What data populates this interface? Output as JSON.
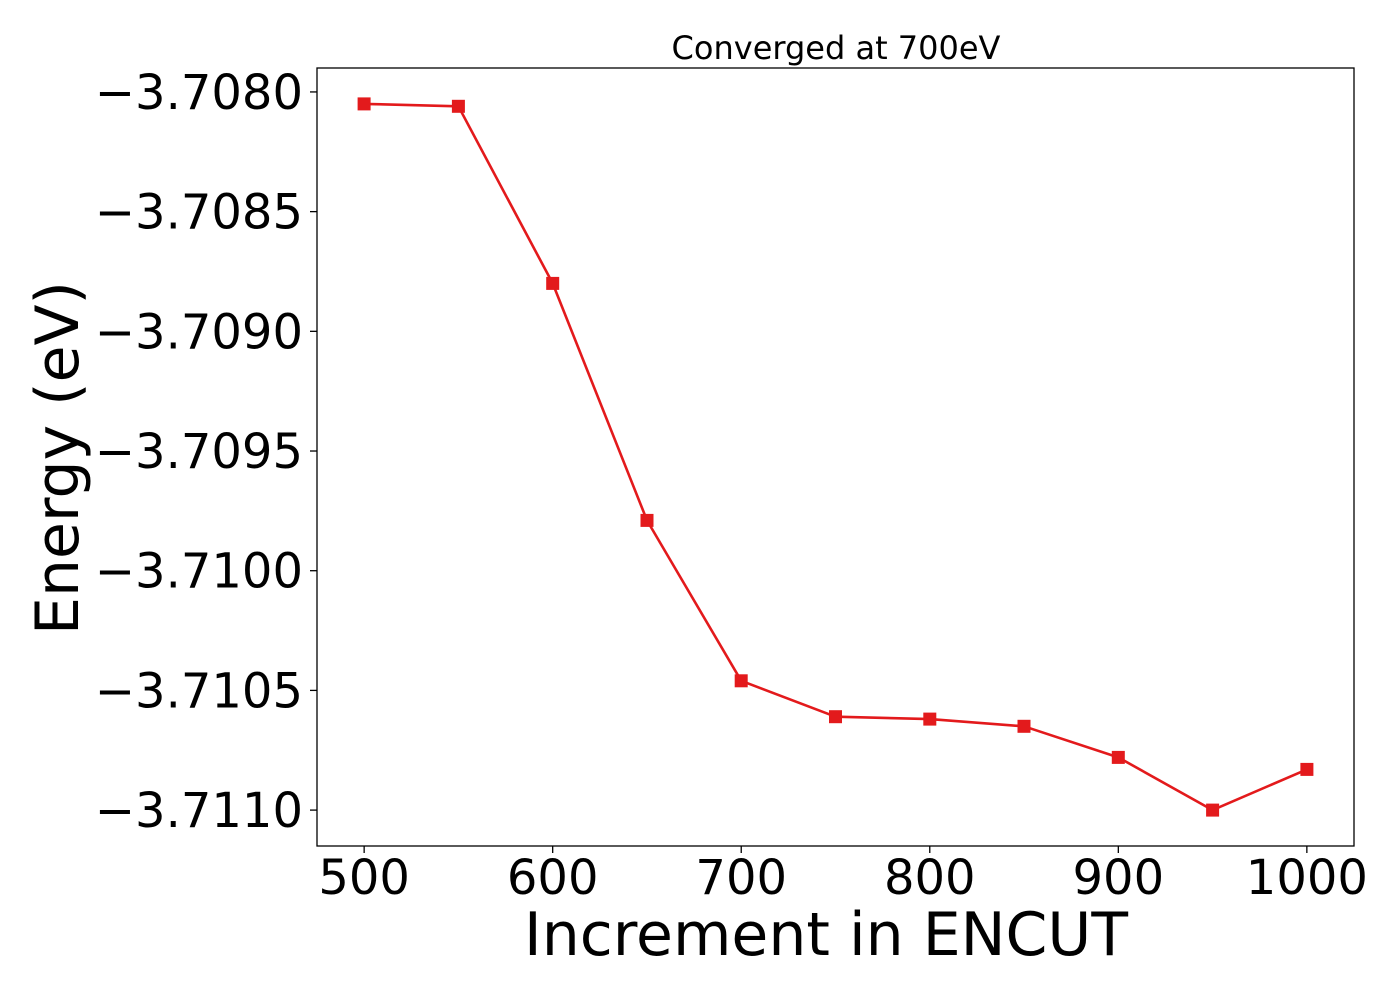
{
  "chart_data": {
    "type": "line",
    "title": "Converged at 700eV",
    "xlabel": "Increment in ENCUT",
    "ylabel": "Energy (eV)",
    "x": [
      500,
      550,
      600,
      650,
      700,
      750,
      800,
      850,
      900,
      950,
      1000
    ],
    "series": [
      {
        "values": [
          -3.70805,
          -3.70806,
          -3.7088,
          -3.70979,
          -3.71046,
          -3.71061,
          -3.71062,
          -3.71065,
          -3.71078,
          -3.711,
          -3.71083
        ],
        "color": "#e31a1c",
        "marker": "square"
      }
    ],
    "xlim": [
      475,
      1025
    ],
    "ylim": [
      -3.71115,
      -3.7079
    ],
    "xticks": [
      500,
      600,
      700,
      800,
      900,
      1000
    ],
    "xtick_labels": [
      "500",
      "600",
      "700",
      "800",
      "900",
      "1000"
    ],
    "yticks": [
      -3.708,
      -3.7085,
      -3.709,
      -3.7095,
      -3.71,
      -3.7105,
      -3.711
    ],
    "ytick_labels": [
      "−3.7080",
      "−3.7085",
      "−3.7090",
      "−3.7095",
      "−3.7100",
      "−3.7105",
      "−3.7110"
    ],
    "grid": false,
    "legend": "none"
  }
}
